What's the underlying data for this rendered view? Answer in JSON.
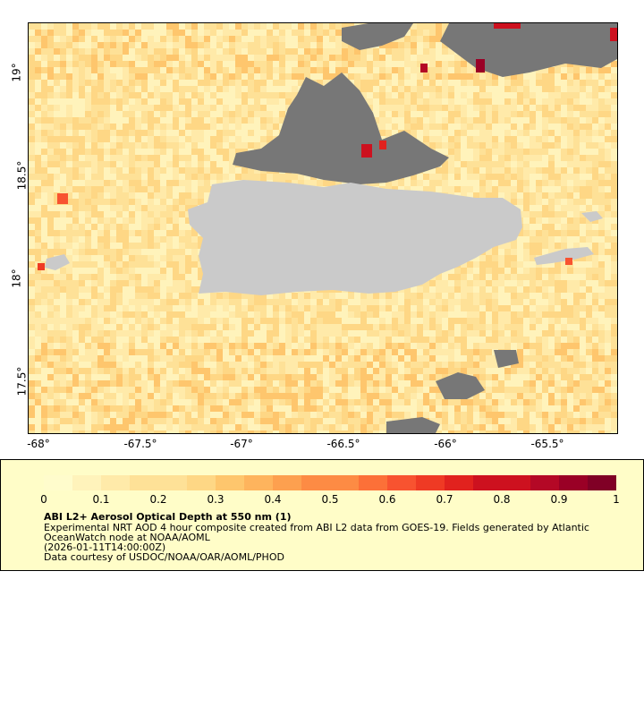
{
  "map": {
    "x_ticks": [
      "-68°",
      "-67.5°",
      "-67°",
      "-66.5°",
      "-66°",
      "-65.5°"
    ],
    "y_ticks": [
      "19°",
      "18.5°",
      "18°",
      "17.5°"
    ],
    "land_color": "#cacaca",
    "no_data_color": "#777777",
    "background_color": "#fde8a6"
  },
  "legend": {
    "ticks": [
      "0",
      "0.1",
      "0.2",
      "0.3",
      "0.4",
      "0.5",
      "0.6",
      "0.7",
      "0.8",
      "0.9",
      "1"
    ],
    "colors": [
      "#fffccc",
      "#fff3bb",
      "#ffeaa9",
      "#fee197",
      "#fed785",
      "#fec66d",
      "#feb45d",
      "#fda04f",
      "#fd8b44",
      "#fc7038",
      "#f85330",
      "#ef3a24",
      "#e1221e",
      "#cd111f",
      "#b40826",
      "#9a0026",
      "#800026"
    ],
    "title": "ABI L2+ Aerosol Optical Depth at 550 nm (1)",
    "line1": "Experimental NRT AOD 4 hour composite created from ABI L2 data from GOES-19. Fields generated by Atlantic",
    "line2": "OceanWatch node at NOAA/AOML",
    "line3": "(2026-01-11T14:00:00Z)",
    "line4": "Data courtesy of USDOC/NOAA/OAR/AOML/PHOD",
    "background": "#fffdc8"
  }
}
